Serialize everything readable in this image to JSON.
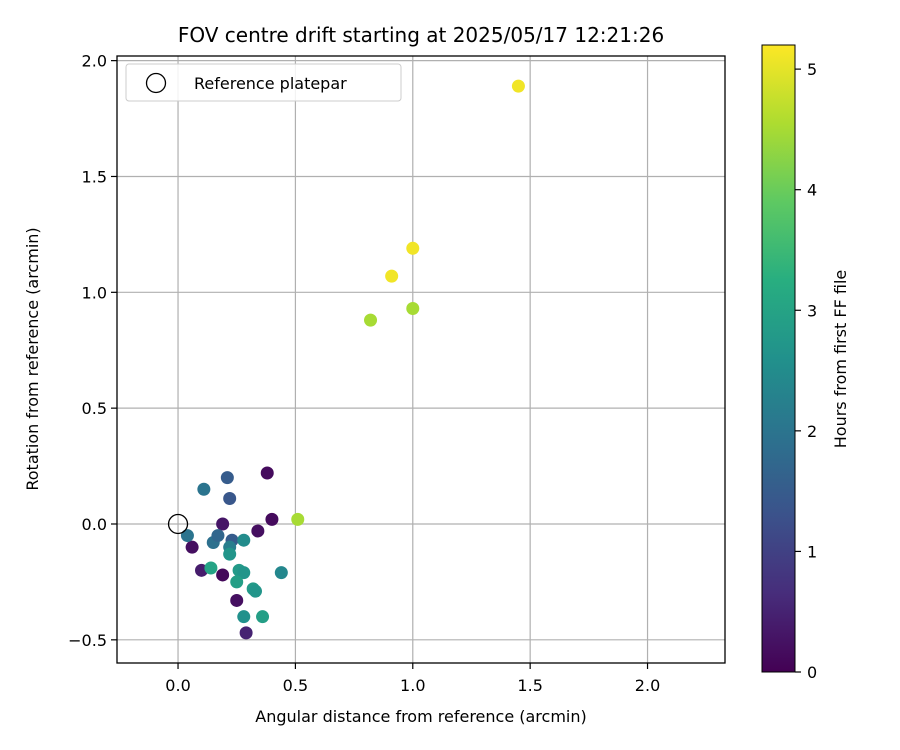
{
  "chart_data": {
    "type": "scatter",
    "title": "FOV centre drift starting at 2025/05/17 12:21:26",
    "xlabel": "Angular distance from reference (arcmin)",
    "ylabel": "Rotation from reference (arcmin)",
    "xlim": [
      -0.26,
      2.33
    ],
    "ylim": [
      -0.6,
      2.02
    ],
    "grid": true,
    "x_ticks": [
      0.0,
      0.5,
      1.0,
      1.5,
      2.0
    ],
    "x_tick_labels": [
      "0.0",
      "0.5",
      "1.0",
      "1.5",
      "2.0"
    ],
    "y_ticks": [
      -0.5,
      0.0,
      0.5,
      1.0,
      1.5,
      2.0
    ],
    "y_tick_labels": [
      "−0.5",
      "0.0",
      "0.5",
      "1.0",
      "1.5",
      "2.0"
    ],
    "legend": {
      "placement": "top-left",
      "entries": [
        {
          "label": "Reference platepar",
          "marker": "open-circle",
          "x": 0.0,
          "y": 0.0
        }
      ]
    },
    "colorbar": {
      "label": "Hours from first FF file",
      "colormap": "viridis",
      "range": [
        0,
        5.2
      ],
      "ticks": [
        0,
        1,
        2,
        3,
        4,
        5
      ],
      "tick_labels": [
        "0",
        "1",
        "2",
        "3",
        "4",
        "5"
      ]
    },
    "points": [
      {
        "x": 0.38,
        "y": 0.22,
        "c": 0.15
      },
      {
        "x": 0.4,
        "y": 0.02,
        "c": 0.15
      },
      {
        "x": 0.34,
        "y": -0.03,
        "c": 0.2
      },
      {
        "x": 0.19,
        "y": 0.0,
        "c": 0.3
      },
      {
        "x": 0.06,
        "y": -0.1,
        "c": 0.2
      },
      {
        "x": 0.1,
        "y": -0.2,
        "c": 0.4
      },
      {
        "x": 0.19,
        "y": -0.22,
        "c": 0.1
      },
      {
        "x": 0.25,
        "y": -0.33,
        "c": 0.2
      },
      {
        "x": 0.29,
        "y": -0.47,
        "c": 0.5
      },
      {
        "x": 0.21,
        "y": 0.2,
        "c": 1.5
      },
      {
        "x": 0.22,
        "y": 0.11,
        "c": 1.4
      },
      {
        "x": 0.11,
        "y": 0.15,
        "c": 2.0
      },
      {
        "x": 0.04,
        "y": -0.05,
        "c": 2.0
      },
      {
        "x": 0.15,
        "y": -0.08,
        "c": 1.9
      },
      {
        "x": 0.17,
        "y": -0.05,
        "c": 1.7
      },
      {
        "x": 0.23,
        "y": -0.07,
        "c": 1.5
      },
      {
        "x": 0.22,
        "y": -0.1,
        "c": 2.2
      },
      {
        "x": 0.28,
        "y": -0.07,
        "c": 2.5
      },
      {
        "x": 0.22,
        "y": -0.13,
        "c": 2.7
      },
      {
        "x": 0.44,
        "y": -0.21,
        "c": 2.4
      },
      {
        "x": 0.14,
        "y": -0.19,
        "c": 3.0
      },
      {
        "x": 0.26,
        "y": -0.2,
        "c": 2.8
      },
      {
        "x": 0.28,
        "y": -0.21,
        "c": 2.7
      },
      {
        "x": 0.25,
        "y": -0.25,
        "c": 2.9
      },
      {
        "x": 0.32,
        "y": -0.28,
        "c": 2.8
      },
      {
        "x": 0.33,
        "y": -0.29,
        "c": 2.7
      },
      {
        "x": 0.36,
        "y": -0.4,
        "c": 2.9
      },
      {
        "x": 0.28,
        "y": -0.4,
        "c": 2.6
      },
      {
        "x": 0.51,
        "y": 0.02,
        "c": 4.5
      },
      {
        "x": 0.82,
        "y": 0.88,
        "c": 4.5
      },
      {
        "x": 1.0,
        "y": 0.93,
        "c": 4.5
      },
      {
        "x": 0.91,
        "y": 1.07,
        "c": 5.1
      },
      {
        "x": 1.0,
        "y": 1.19,
        "c": 5.1
      },
      {
        "x": 1.45,
        "y": 1.89,
        "c": 5.1
      }
    ]
  }
}
